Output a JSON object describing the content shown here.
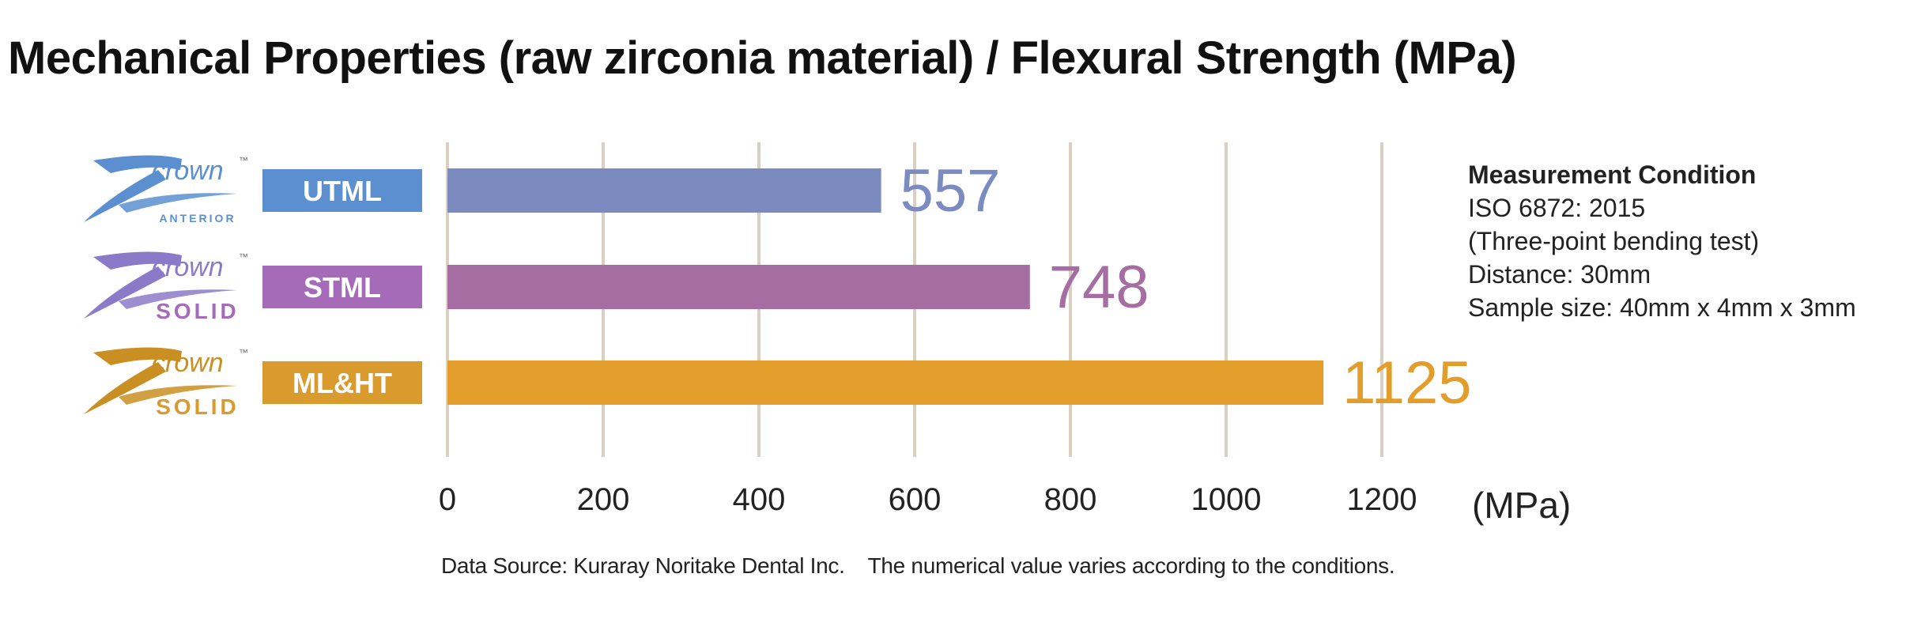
{
  "title": "Mechanical Properties (raw zirconia material) / Flexural Strength (MPa)",
  "chart_data": {
    "type": "bar",
    "orientation": "horizontal",
    "categories": [
      "UTML",
      "STML",
      "ML&HT"
    ],
    "values": [
      557,
      748,
      1125
    ],
    "value_labels": [
      "557",
      "748",
      "1125"
    ],
    "tick_values": [
      0,
      200,
      400,
      600,
      800,
      1000,
      1200
    ],
    "tick_labels": [
      "0",
      "200",
      "400",
      "600",
      "800",
      "1000",
      "1200"
    ],
    "xlabel": "(MPa)",
    "xlim": [
      0,
      1250
    ],
    "grid": true,
    "colors": [
      "#7b8bc0",
      "#a56da2",
      "#e39d2a"
    ],
    "label_box_colors": [
      "#5b8fcf",
      "#a56ab8",
      "#d99a2e"
    ],
    "brands": [
      {
        "logo_text": "crown",
        "logo_tm": "™",
        "logo_sub": "ANTERIOR",
        "logo_color": "#5b8fcf",
        "sub_color": "#5b8fcf"
      },
      {
        "logo_text": "crown",
        "logo_tm": "™",
        "logo_sub": "SOLID",
        "logo_color": "#8b7ac8",
        "sub_color": "#a56ab8"
      },
      {
        "logo_text": "crown",
        "logo_tm": "™",
        "logo_sub": "SOLID",
        "logo_color": "#c98f22",
        "sub_color": "#d99a2e"
      }
    ]
  },
  "measurement": {
    "title": "Measurement Condition",
    "lines": [
      "ISO 6872: 2015",
      "(Three-point bending test)",
      "Distance: 30mm",
      "Sample size: 40mm x 4mm x 3mm"
    ]
  },
  "footnote": {
    "source": "Data Source: Kuraray Noritake Dental Inc.",
    "note": "The numerical value varies according to the conditions."
  }
}
